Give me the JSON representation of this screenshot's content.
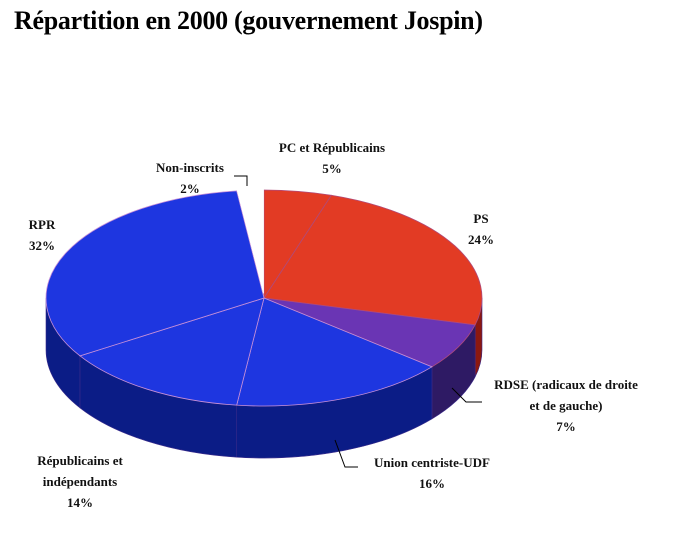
{
  "chart_data": {
    "type": "pie",
    "title": "Répartition en 2000 (gouvernement Jospin)",
    "slices": [
      {
        "label": "PC et Républicains",
        "value": 5,
        "display": "5%",
        "color": "#e23b24"
      },
      {
        "label": "PS",
        "value": 24,
        "display": "24%",
        "color": "#e23b24"
      },
      {
        "label": "RDSE (radicaux de droite et de gauche)",
        "label_lines": [
          "RDSE (radicaux de droite",
          "et de gauche)"
        ],
        "value": 7,
        "display": "7%",
        "color": "#6a35b4"
      },
      {
        "label": "Union centriste-UDF",
        "value": 16,
        "display": "16%",
        "color": "#1e36e0"
      },
      {
        "label": "Républicains et indépendants",
        "label_lines": [
          "Républicains et",
          "indépendants"
        ],
        "value": 14,
        "display": "14%",
        "color": "#1e36e0"
      },
      {
        "label": "RPR",
        "value": 32,
        "display": "32%",
        "color": "#1e36e0"
      },
      {
        "label": "Non-inscrits",
        "value": 2,
        "display": "2%",
        "color": "#ffffff"
      }
    ]
  }
}
